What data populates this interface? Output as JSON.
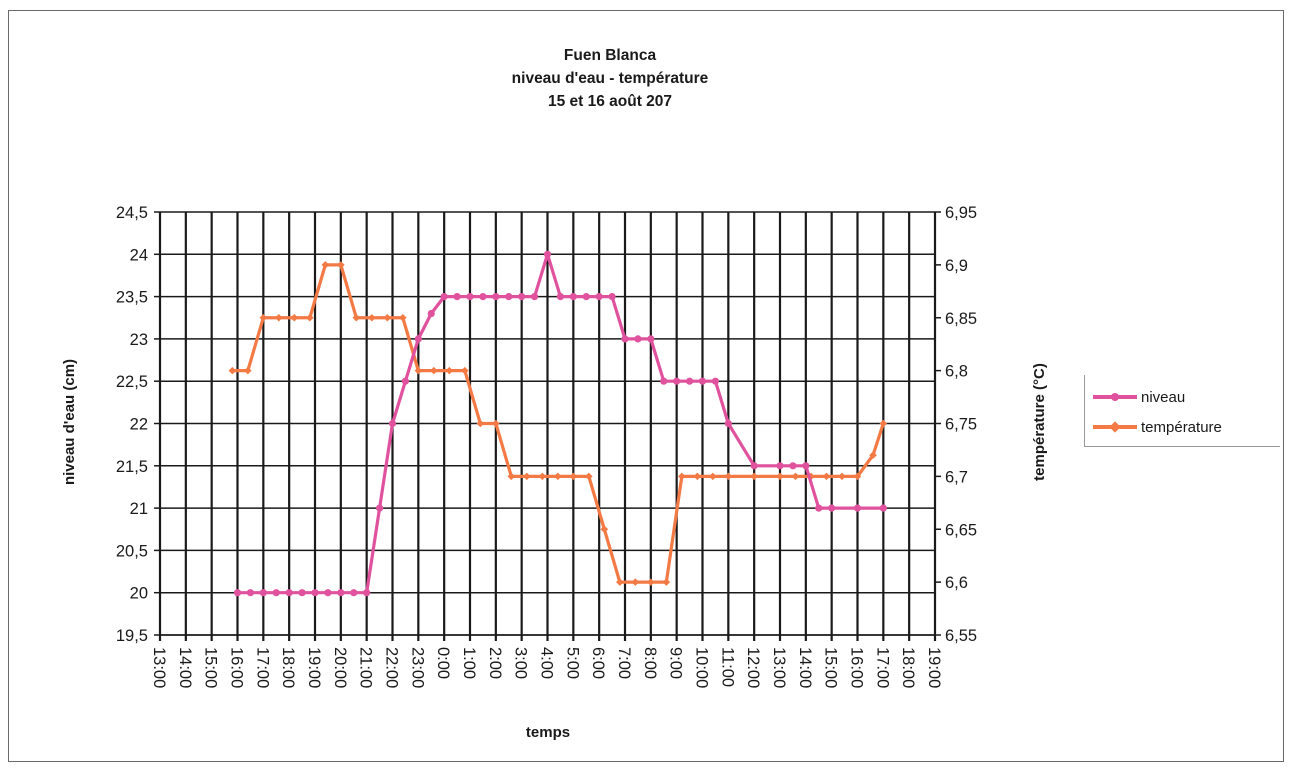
{
  "colors": {
    "niveau": "#e0529e",
    "temperature": "#f37a45",
    "grid": "#1a1a1a"
  },
  "chart_data": {
    "type": "line",
    "title": [
      "Fuen Blanca",
      "niveau d'eau - température",
      "15 et 16 août 207"
    ],
    "xlabel": "temps",
    "ylabel_left": "niveau d'eau (cm)",
    "ylabel_right": "température (°C)",
    "x_ticks": [
      "13:00",
      "14:00",
      "15:00",
      "16:00",
      "17:00",
      "18:00",
      "19:00",
      "20:00",
      "21:00",
      "22:00",
      "23:00",
      "0:00",
      "1:00",
      "2:00",
      "3:00",
      "4:00",
      "5:00",
      "6:00",
      "7:00",
      "8:00",
      "9:00",
      "10:00",
      "11:00",
      "12:00",
      "13:00",
      "14:00",
      "15:00",
      "16:00",
      "17:00",
      "18:00",
      "19:00"
    ],
    "y_left": {
      "range": [
        19.5,
        24.5
      ],
      "ticks": [
        "24,5",
        "24",
        "23,5",
        "23",
        "22,5",
        "22",
        "21,5",
        "21",
        "20,5",
        "20",
        "19,5"
      ]
    },
    "y_right": {
      "range": [
        6.55,
        6.95
      ],
      "ticks": [
        "6,95",
        "6,9",
        "6,85",
        "6,8",
        "6,75",
        "6,7",
        "6,65",
        "6,6",
        "6,55"
      ]
    },
    "grid": true,
    "legend_position": "right",
    "series": [
      {
        "name": "niveau",
        "axis": "left",
        "x": [
          3.0,
          3.5,
          4.0,
          4.5,
          5.0,
          5.5,
          6.0,
          6.5,
          7.0,
          7.5,
          8.0,
          8.5,
          9.0,
          9.5,
          10.0,
          10.5,
          11.0,
          11.5,
          12.0,
          12.5,
          13.0,
          13.5,
          14.0,
          14.5,
          15.0,
          15.5,
          16.0,
          16.5,
          17.0,
          17.5,
          18.0,
          18.5,
          19.0,
          19.5,
          20.0,
          20.5,
          21.0,
          21.5,
          22.0,
          23.0,
          24.0,
          24.5,
          25.0,
          25.5,
          26.0,
          27.0,
          28.0
        ],
        "values": [
          20,
          20,
          20,
          20,
          20,
          20,
          20,
          20,
          20,
          20,
          20,
          21,
          22,
          22.5,
          23,
          23.3,
          23.5,
          23.5,
          23.5,
          23.5,
          23.5,
          23.5,
          23.5,
          23.5,
          24,
          23.5,
          23.5,
          23.5,
          23.5,
          23.5,
          23,
          23,
          23,
          22.5,
          22.5,
          22.5,
          22.5,
          22.5,
          22,
          21.5,
          21.5,
          21.5,
          21.5,
          21,
          21,
          21,
          21
        ]
      },
      {
        "name": "température",
        "axis": "right",
        "x": [
          2.8,
          3.4,
          4.0,
          4.6,
          5.2,
          5.8,
          6.4,
          7.0,
          7.6,
          8.2,
          8.8,
          9.4,
          10.0,
          10.6,
          11.2,
          11.8,
          12.4,
          13.0,
          13.6,
          14.2,
          14.8,
          15.4,
          16.0,
          16.6,
          17.2,
          17.8,
          18.4,
          19.0,
          19.6,
          20.2,
          20.8,
          21.4,
          22.0,
          23.0,
          24.0,
          24.6,
          25.2,
          25.8,
          26.4,
          27.0,
          27.6,
          28.0
        ],
        "values": [
          6.8,
          6.8,
          6.85,
          6.85,
          6.85,
          6.85,
          6.9,
          6.9,
          6.85,
          6.85,
          6.85,
          6.85,
          6.8,
          6.8,
          6.8,
          6.8,
          6.75,
          6.75,
          6.7,
          6.7,
          6.7,
          6.7,
          6.7,
          6.7,
          6.65,
          6.6,
          6.6,
          6.6,
          6.6,
          6.7,
          6.7,
          6.7,
          6.7,
          6.7,
          6.7,
          6.7,
          6.7,
          6.7,
          6.7,
          6.7,
          6.72,
          6.75
        ]
      }
    ]
  }
}
